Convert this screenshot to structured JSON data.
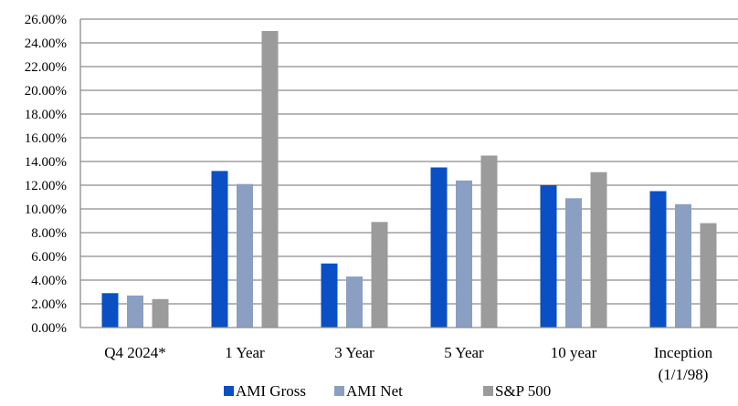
{
  "chart_data": {
    "type": "bar",
    "title": "",
    "xlabel": "",
    "ylabel": "",
    "ylim": [
      0,
      26
    ],
    "y_ticks": [
      "0.00%",
      "2.00%",
      "4.00%",
      "6.00%",
      "8.00%",
      "10.00%",
      "12.00%",
      "14.00%",
      "16.00%",
      "18.00%",
      "20.00%",
      "22.00%",
      "24.00%",
      "26.00%"
    ],
    "categories": [
      [
        "Q4 2024*"
      ],
      [
        "1 Year"
      ],
      [
        "3 Year"
      ],
      [
        "5 Year"
      ],
      [
        "10 year"
      ],
      [
        "Inception",
        "(1/1/98)"
      ]
    ],
    "series": [
      {
        "name": "AMI Gross",
        "color": "#0a4fc4",
        "values": [
          2.9,
          13.2,
          5.4,
          13.5,
          12.0,
          11.5
        ]
      },
      {
        "name": "AMI Net",
        "color": "#8a9fc2",
        "values": [
          2.7,
          12.1,
          4.3,
          12.4,
          10.9,
          10.4
        ]
      },
      {
        "name": "S&P 500",
        "color": "#9b9b9b",
        "values": [
          2.4,
          25.0,
          8.9,
          14.5,
          13.1,
          8.8
        ]
      }
    ],
    "grid": true,
    "legend_position": "bottom"
  }
}
